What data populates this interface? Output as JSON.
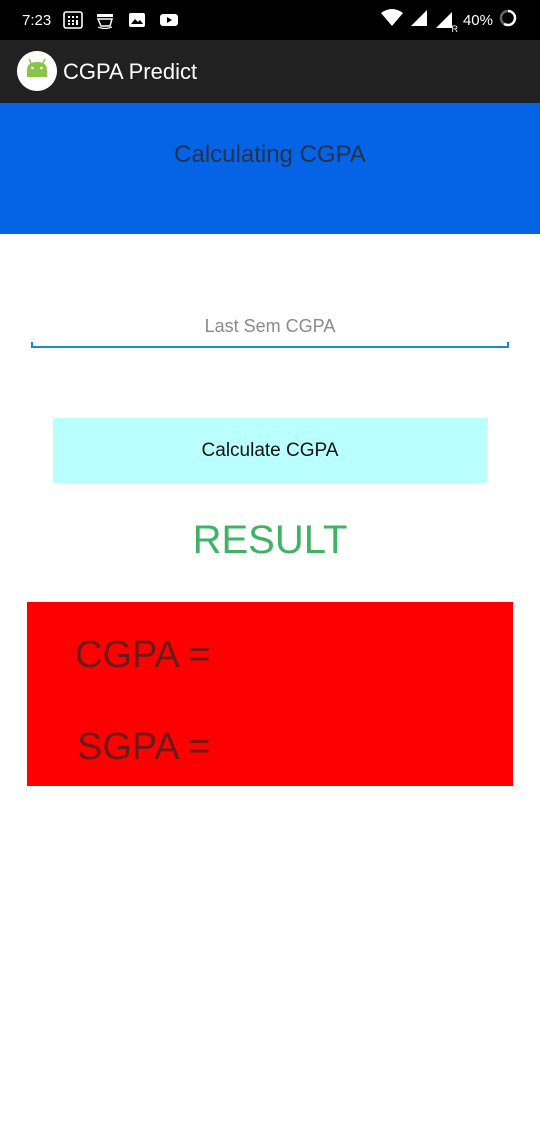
{
  "status_bar": {
    "time": "7:23",
    "notification_icons": [
      "calculator-icon",
      "amazon-icon",
      "image-icon",
      "youtube-icon"
    ],
    "system_icons": [
      "wifi-icon",
      "signal-icon",
      "signal-roaming-icon",
      "battery-icon"
    ],
    "roaming_label": "R",
    "battery_percent": "40%"
  },
  "app_bar": {
    "title": "CGPA Predict",
    "logo_icon": "android-icon"
  },
  "header": {
    "text": "Calculating CGPA",
    "background_color": "#0563e6"
  },
  "form": {
    "input_placeholder": "Last Sem CGPA",
    "input_value": "",
    "calculate_button_label": "Calculate CGPA",
    "button_color": "#b8fffd"
  },
  "result": {
    "heading": "RESULT",
    "heading_color": "#3cb464",
    "panel_color": "#ff0000",
    "cgpa_label": "CGPA =",
    "sgpa_label": "SGPA ="
  }
}
